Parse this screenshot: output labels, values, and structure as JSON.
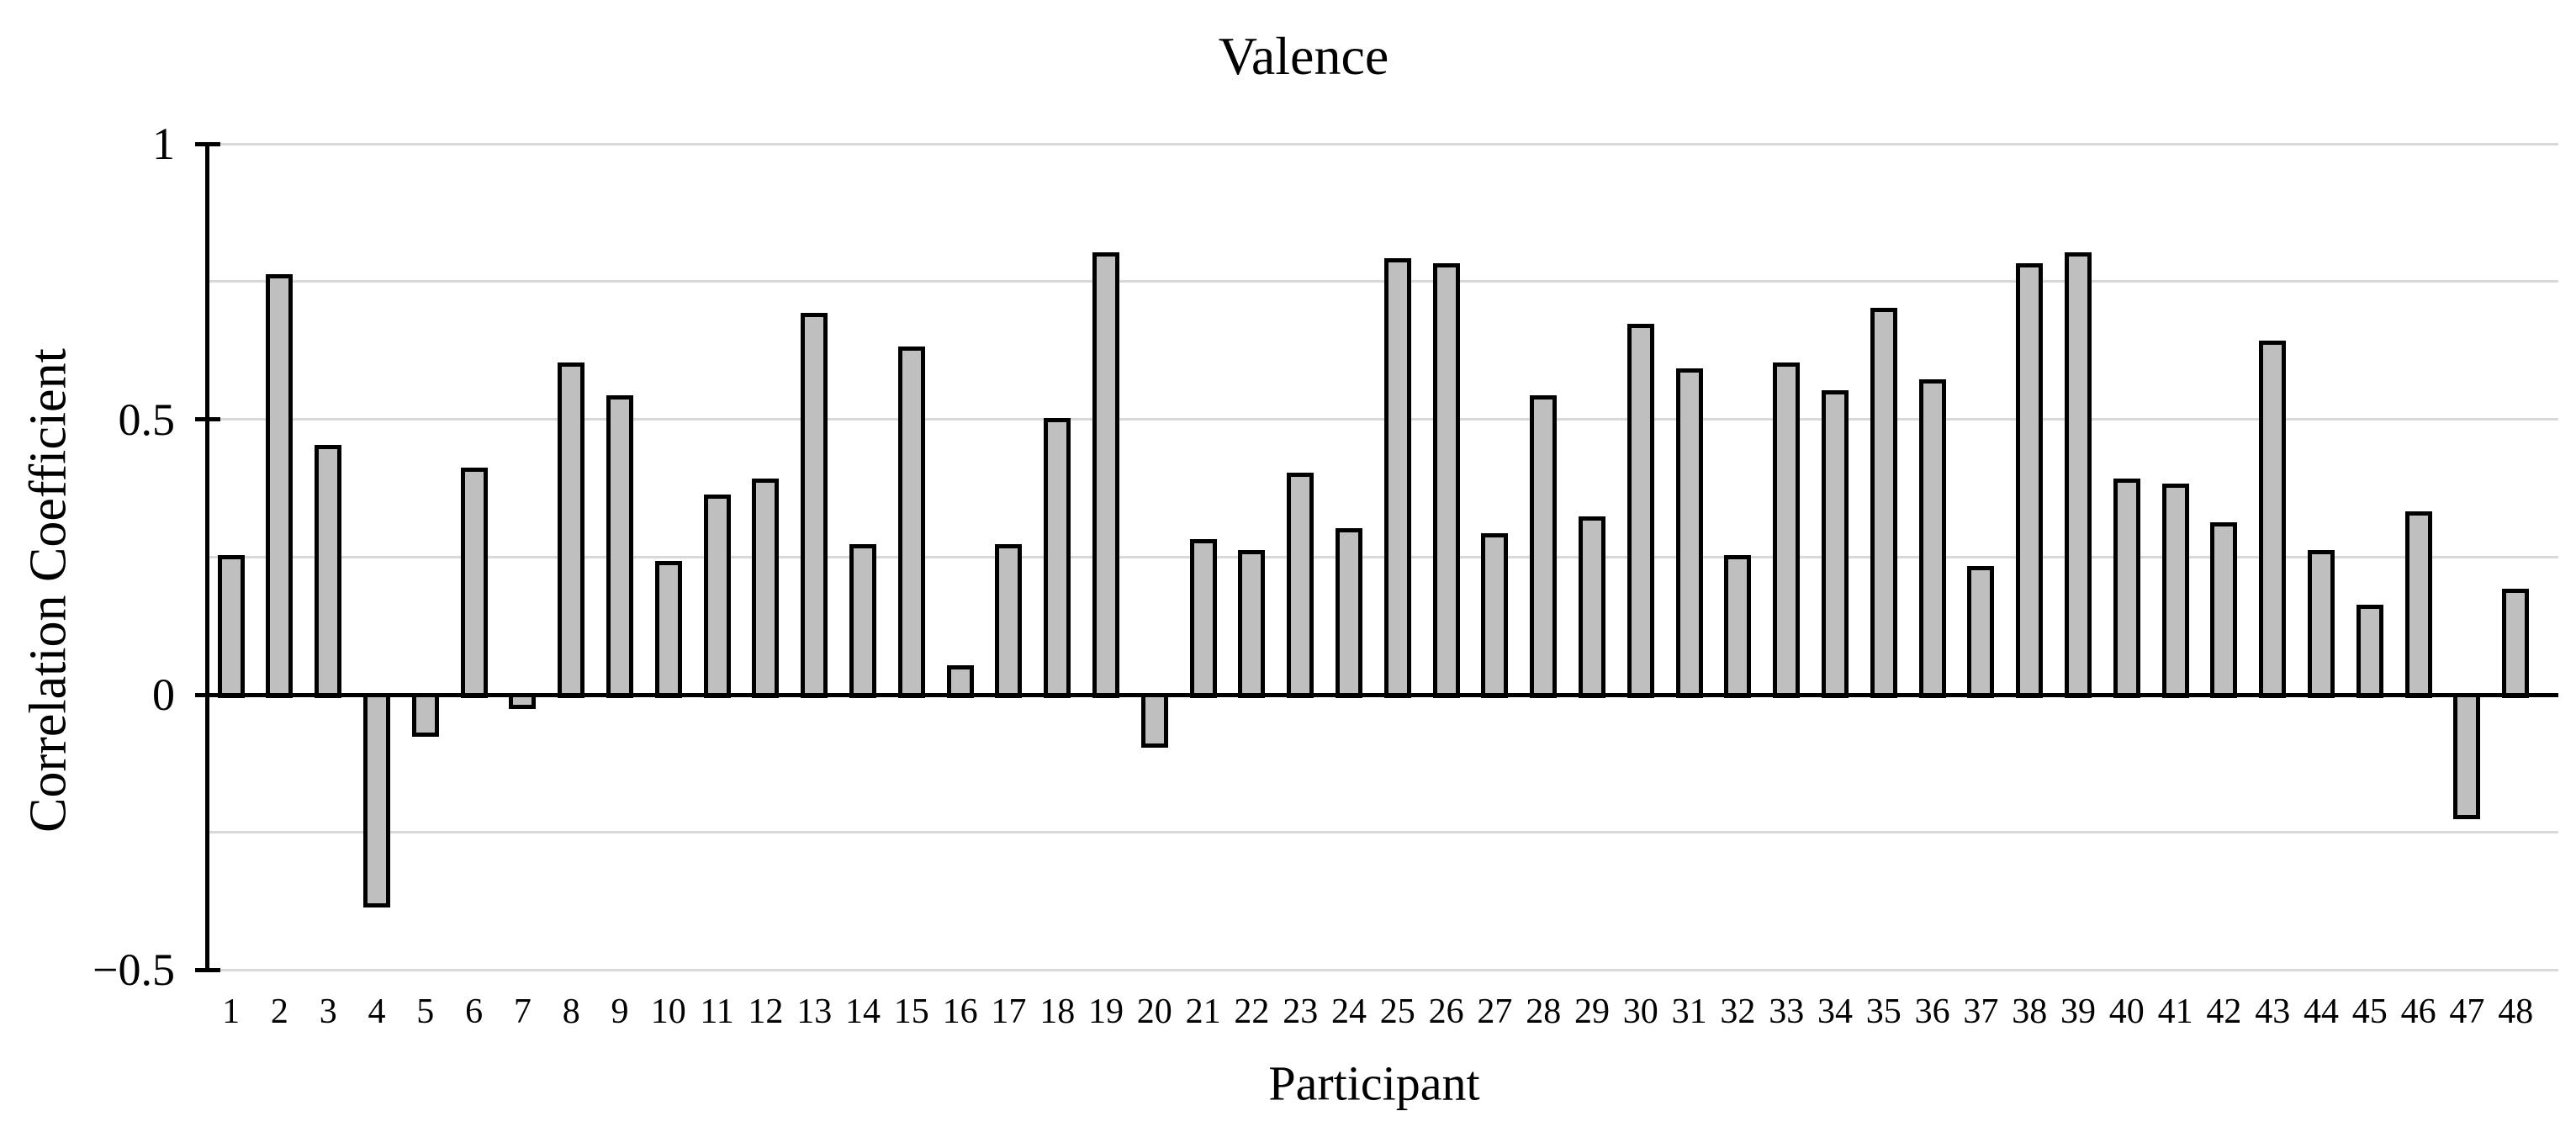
{
  "chart_data": {
    "type": "bar",
    "title": "Valence",
    "xlabel": "Participant",
    "ylabel": "Correlation Coefficient",
    "categories": [
      "1",
      "2",
      "3",
      "4",
      "5",
      "6",
      "7",
      "8",
      "9",
      "10",
      "11",
      "12",
      "13",
      "14",
      "15",
      "16",
      "17",
      "18",
      "19",
      "20",
      "21",
      "22",
      "23",
      "24",
      "25",
      "26",
      "27",
      "28",
      "29",
      "30",
      "31",
      "32",
      "33",
      "34",
      "35",
      "36",
      "37",
      "38",
      "39",
      "40",
      "41",
      "42",
      "43",
      "44",
      "45",
      "46",
      "47",
      "48"
    ],
    "values": [
      0.25,
      0.76,
      0.45,
      -0.38,
      -0.07,
      0.41,
      -0.02,
      0.6,
      0.54,
      0.24,
      0.36,
      0.39,
      0.69,
      0.27,
      0.63,
      0.05,
      0.27,
      0.5,
      0.8,
      -0.09,
      0.28,
      0.26,
      0.4,
      0.3,
      0.79,
      0.78,
      0.29,
      0.54,
      0.32,
      0.67,
      0.59,
      0.25,
      0.6,
      0.55,
      0.7,
      0.57,
      0.23,
      0.78,
      0.8,
      0.39,
      0.38,
      0.31,
      0.64,
      0.26,
      0.16,
      0.33,
      -0.22,
      0.19
    ],
    "ylim": [
      -0.5,
      1
    ],
    "yticks": [
      {
        "value": 1,
        "label": "1"
      },
      {
        "value": 0.5,
        "label": "0.5"
      },
      {
        "value": 0,
        "label": "0"
      },
      {
        "value": -0.5,
        "label": "−0.5"
      }
    ],
    "gridline_values": [
      1,
      0.75,
      0.5,
      0.25,
      -0.25,
      -0.5
    ],
    "grid": true,
    "legend": false,
    "colors": {
      "bar_fill": "#BFBFBF",
      "bar_border": "#000000",
      "gridline": "#D9D9D9",
      "axis": "#000000",
      "background": "#FFFFFF"
    }
  }
}
